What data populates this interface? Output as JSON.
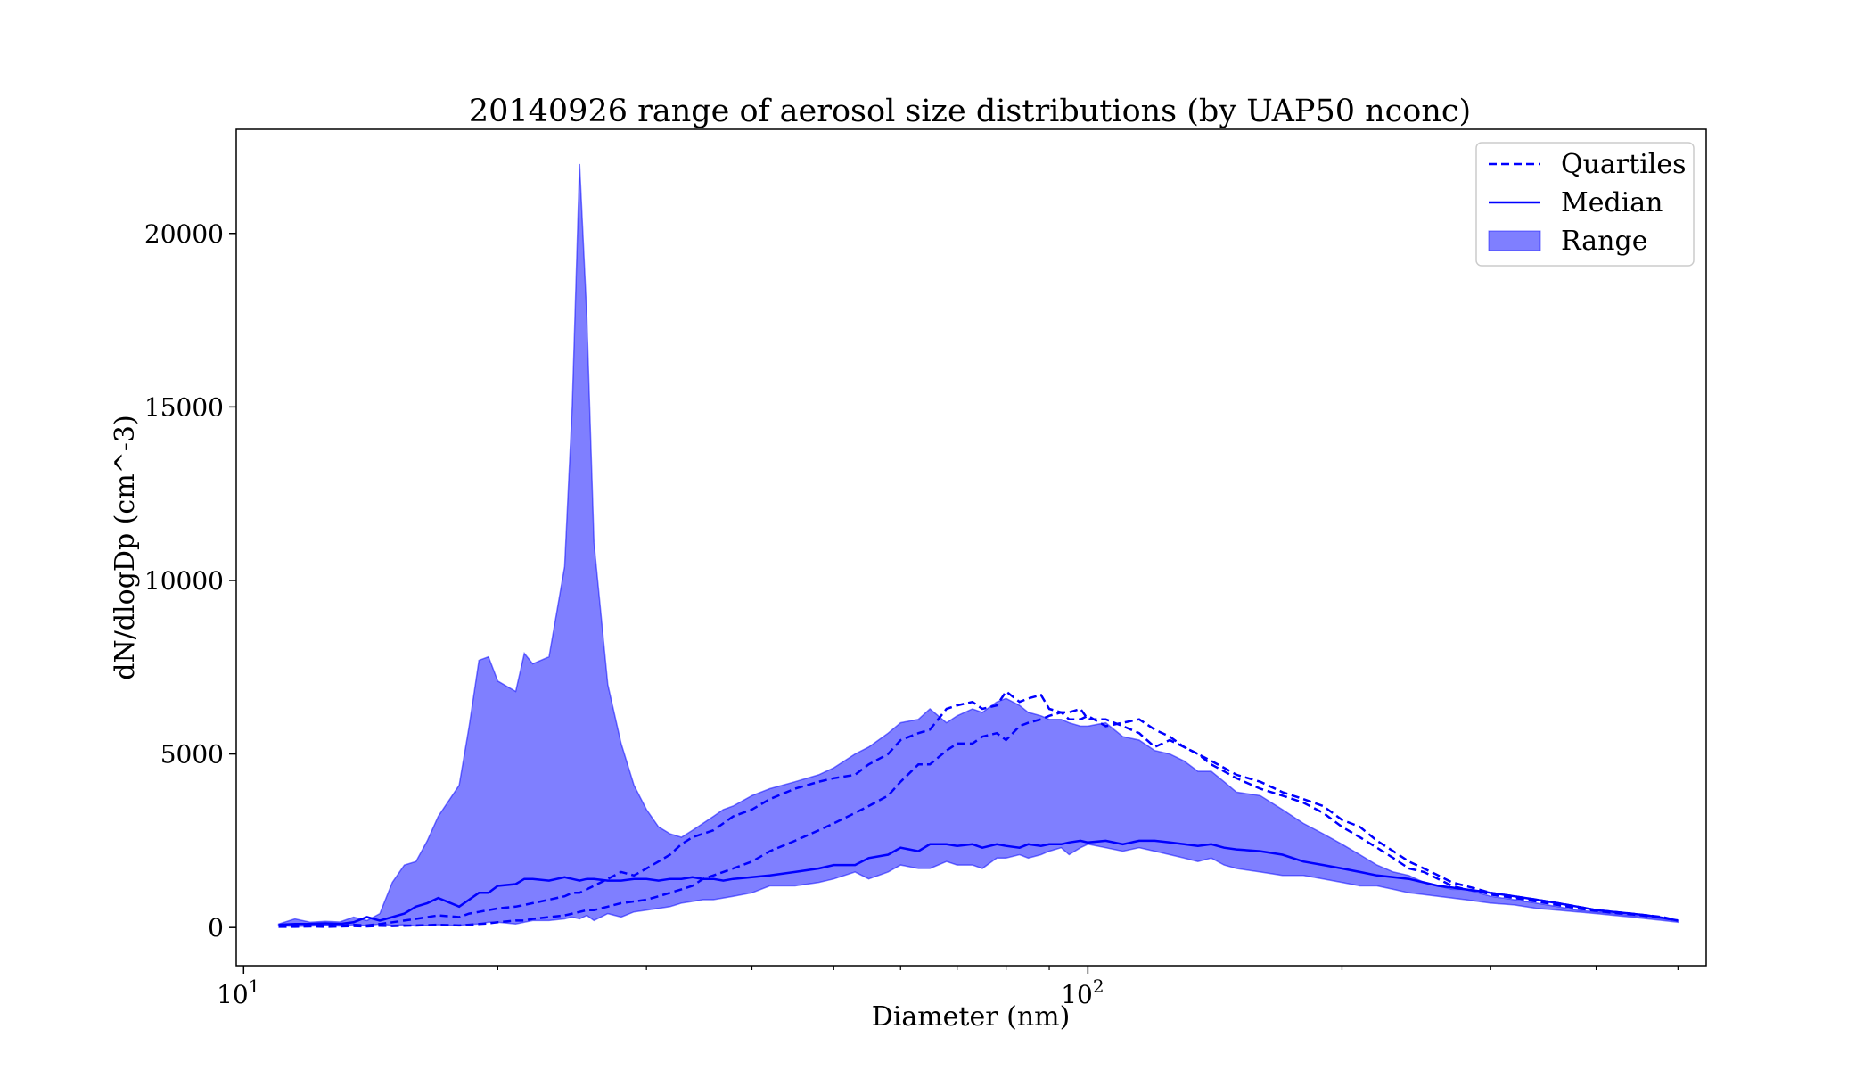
{
  "chart_data": {
    "type": "area",
    "title": "20140926 range of aerosol size distributions (by UAP50 nconc)",
    "xlabel": "Diameter (nm)",
    "ylabel": "dN/dlogDp (cm^-3)",
    "x_scale": "log",
    "xlim": [
      9.8,
      540
    ],
    "ylim": [
      -1100,
      23000
    ],
    "y_ticks": [
      0,
      5000,
      10000,
      15000,
      20000
    ],
    "x_ticks": [
      {
        "value": 10,
        "base": "10",
        "exp": "1"
      },
      {
        "value": 100,
        "base": "10",
        "exp": "2"
      }
    ],
    "legend_position": "top-right",
    "grid": false,
    "color": "#0000ff",
    "x": [
      11,
      11.5,
      12,
      12.5,
      13,
      13.5,
      14,
      14.5,
      15,
      15.5,
      16,
      16.5,
      17,
      18,
      18.5,
      19,
      19.5,
      20,
      21,
      21.5,
      22,
      23,
      24,
      24.5,
      25,
      25.5,
      26,
      27,
      28,
      29,
      30,
      31,
      32,
      33,
      34,
      35,
      36,
      37,
      38,
      40,
      42,
      45,
      48,
      50,
      53,
      55,
      58,
      60,
      63,
      65,
      68,
      70,
      73,
      75,
      78,
      80,
      83,
      85,
      88,
      90,
      93,
      95,
      98,
      100,
      105,
      110,
      115,
      120,
      125,
      130,
      135,
      140,
      145,
      150,
      160,
      170,
      180,
      190,
      200,
      210,
      220,
      230,
      240,
      250,
      260,
      270,
      280,
      290,
      300,
      320,
      340,
      360,
      380,
      400,
      420,
      440,
      460,
      480,
      500
    ],
    "series": [
      {
        "name": "Range",
        "kind": "fill_between",
        "upper": [
          100,
          250,
          150,
          180,
          160,
          300,
          200,
          400,
          1300,
          1800,
          1900,
          2500,
          3200,
          4100,
          5800,
          7700,
          7800,
          7100,
          6800,
          7900,
          7600,
          7800,
          10400,
          15000,
          22000,
          17600,
          11100,
          7000,
          5300,
          4100,
          3400,
          2900,
          2700,
          2600,
          2800,
          3000,
          3200,
          3400,
          3500,
          3800,
          4000,
          4200,
          4400,
          4600,
          5000,
          5200,
          5600,
          5900,
          6000,
          6300,
          5900,
          6100,
          6300,
          6200,
          6500,
          6600,
          6400,
          6200,
          6100,
          6000,
          6000,
          5900,
          5800,
          5800,
          5900,
          5500,
          5400,
          5100,
          5000,
          4800,
          4500,
          4500,
          4200,
          3900,
          3800,
          3400,
          3000,
          2700,
          2400,
          2100,
          1800,
          1600,
          1500,
          1300,
          1200,
          1100,
          1100,
          1000,
          900,
          800,
          700,
          600,
          500,
          450,
          400,
          350,
          300,
          250,
          200
        ],
        "lower": [
          50,
          30,
          40,
          60,
          40,
          80,
          50,
          100,
          60,
          80,
          40,
          60,
          80,
          60,
          90,
          100,
          150,
          150,
          100,
          150,
          200,
          200,
          250,
          300,
          250,
          350,
          200,
          400,
          300,
          450,
          500,
          550,
          600,
          700,
          750,
          800,
          800,
          850,
          900,
          1000,
          1200,
          1200,
          1300,
          1400,
          1600,
          1400,
          1600,
          1800,
          1700,
          1700,
          1900,
          1800,
          1800,
          1700,
          2000,
          2000,
          2100,
          2000,
          2100,
          2200,
          2300,
          2100,
          2300,
          2400,
          2300,
          2200,
          2300,
          2200,
          2100,
          2000,
          1900,
          2000,
          1800,
          1700,
          1600,
          1500,
          1500,
          1400,
          1300,
          1200,
          1200,
          1100,
          1000,
          950,
          900,
          850,
          800,
          750,
          700,
          650,
          550,
          500,
          450,
          400,
          350,
          300,
          250,
          200,
          150
        ]
      },
      {
        "name": "Median",
        "kind": "line",
        "values": [
          80,
          100,
          100,
          120,
          100,
          150,
          300,
          200,
          300,
          400,
          600,
          700,
          850,
          600,
          800,
          1000,
          1000,
          1200,
          1250,
          1400,
          1400,
          1350,
          1450,
          1400,
          1350,
          1400,
          1400,
          1350,
          1350,
          1400,
          1400,
          1350,
          1400,
          1400,
          1450,
          1400,
          1400,
          1350,
          1400,
          1450,
          1500,
          1600,
          1700,
          1800,
          1800,
          2000,
          2100,
          2300,
          2200,
          2400,
          2400,
          2350,
          2400,
          2300,
          2400,
          2350,
          2300,
          2400,
          2350,
          2400,
          2400,
          2450,
          2500,
          2450,
          2500,
          2400,
          2500,
          2500,
          2450,
          2400,
          2350,
          2400,
          2300,
          2250,
          2200,
          2100,
          1900,
          1800,
          1700,
          1600,
          1500,
          1450,
          1400,
          1300,
          1200,
          1150,
          1100,
          1050,
          1000,
          900,
          800,
          700,
          600,
          500,
          450,
          400,
          350,
          280,
          200
        ]
      },
      {
        "name": "Quartiles",
        "kind": "dashed_line",
        "values": [
          30,
          40,
          50,
          60,
          40,
          80,
          60,
          100,
          150,
          200,
          250,
          300,
          350,
          300,
          400,
          450,
          500,
          550,
          600,
          650,
          700,
          800,
          900,
          1000,
          1000,
          1100,
          1200,
          1400,
          1600,
          1500,
          1700,
          1900,
          2100,
          2400,
          2600,
          2700,
          2800,
          3000,
          3200,
          3400,
          3700,
          4000,
          4200,
          4300,
          4400,
          4700,
          5000,
          5400,
          5600,
          5700,
          6300,
          6400,
          6500,
          6300,
          6400,
          6800,
          6500,
          6600,
          6700,
          6300,
          6200,
          6200,
          6300,
          6000,
          6000,
          5800,
          5600,
          5200,
          5400,
          5200,
          5000,
          4800,
          4600,
          4400,
          4200,
          3900,
          3700,
          3500,
          3100,
          2900,
          2500,
          2200,
          1900,
          1700,
          1500,
          1300,
          1200,
          1100,
          1000,
          900,
          800,
          700,
          600,
          500,
          450,
          400,
          350,
          300,
          200
        ]
      },
      {
        "name": "",
        "kind": "dashed_line",
        "values": [
          20,
          20,
          30,
          20,
          30,
          40,
          30,
          50,
          40,
          50,
          60,
          70,
          80,
          60,
          80,
          100,
          120,
          150,
          200,
          200,
          250,
          300,
          350,
          400,
          450,
          500,
          500,
          600,
          700,
          750,
          800,
          900,
          1000,
          1100,
          1200,
          1400,
          1500,
          1600,
          1700,
          1900,
          2200,
          2500,
          2800,
          3000,
          3300,
          3500,
          3800,
          4200,
          4700,
          4700,
          5100,
          5300,
          5300,
          5500,
          5600,
          5400,
          5800,
          5900,
          6000,
          6100,
          6200,
          6000,
          6000,
          6100,
          5800,
          5900,
          6000,
          5700,
          5500,
          5200,
          5000,
          4700,
          4500,
          4300,
          4000,
          3800,
          3600,
          3300,
          2900,
          2600,
          2300,
          2000,
          1700,
          1600,
          1400,
          1200,
          1100,
          1050,
          950,
          850,
          750,
          650,
          550,
          480,
          420,
          380,
          330,
          280,
          200
        ]
      }
    ],
    "legend": [
      "Quartiles",
      "Median",
      "Range"
    ]
  }
}
